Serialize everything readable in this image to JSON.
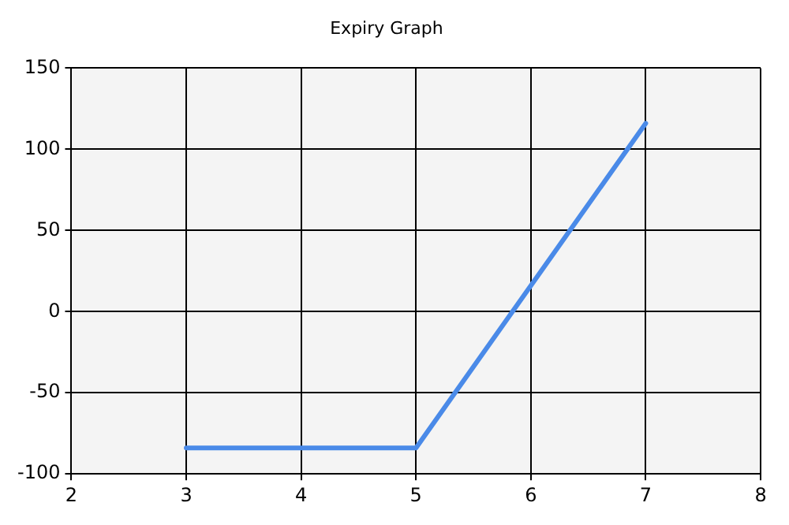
{
  "chart_data": {
    "type": "line",
    "title": "Expiry Graph",
    "x": [
      3,
      5,
      7
    ],
    "series": [
      {
        "color": "#4a8ae8",
        "values": [
          -84,
          -84,
          116
        ]
      }
    ],
    "xlim": [
      2,
      8
    ],
    "xticks": [
      2,
      3,
      4,
      5,
      6,
      7,
      8
    ],
    "ylim": [
      -100,
      150
    ],
    "yticks": [
      -100,
      -50,
      0,
      50,
      100,
      150
    ],
    "grid": true,
    "legend": false,
    "marker": "none",
    "line_style": "solid"
  }
}
